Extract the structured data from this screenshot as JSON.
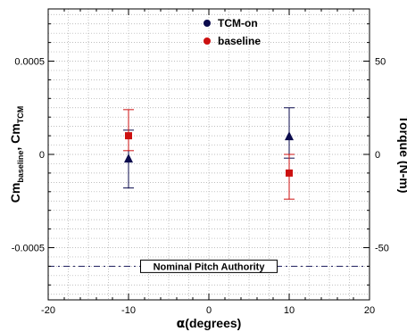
{
  "chart_data": {
    "type": "scatter",
    "xlabel": "α(degrees)",
    "ylabel_left": {
      "base": "Cm",
      "sub1": "baseline",
      "mid": ", Cm",
      "sub2": "TCM"
    },
    "ylabel_right": "Torque (N-m)",
    "xlim": [
      -20,
      20
    ],
    "ylim": [
      -0.00078,
      0.00078
    ],
    "right_ylim": [
      -78,
      78
    ],
    "x_ticks": [
      -20,
      -10,
      0,
      10,
      20
    ],
    "x_tick_labels": [
      "-20",
      "-10",
      "0",
      "10",
      "20"
    ],
    "y_ticks": [
      -0.0005,
      0,
      0.0005
    ],
    "y_tick_labels": [
      "-0.0005",
      "0",
      "0.0005"
    ],
    "right_ticks": [
      -50,
      0,
      50
    ],
    "right_tick_labels": [
      "-50",
      "0",
      "50"
    ],
    "grid": true,
    "legend_position": "top-center",
    "series": [
      {
        "name": "TCM-on",
        "marker": "triangle",
        "color": "#0b0b4d",
        "points": [
          {
            "x": -10,
            "y": -2e-05,
            "err_low": -0.00018,
            "err_high": 0.00013
          },
          {
            "x": 10,
            "y": 0.0001,
            "err_low": -2e-05,
            "err_high": 0.00025
          }
        ]
      },
      {
        "name": "baseline",
        "marker": "square",
        "color": "#cc1111",
        "points": [
          {
            "x": -10,
            "y": 0.0001,
            "err_low": 2e-05,
            "err_high": 0.00024
          },
          {
            "x": 10,
            "y": -0.0001,
            "err_low": -0.00024,
            "err_high": 0.0
          }
        ]
      }
    ],
    "reference_line": {
      "y": -0.0006,
      "label": "Nominal Pitch Authority",
      "color": "#1a1a5c"
    }
  }
}
